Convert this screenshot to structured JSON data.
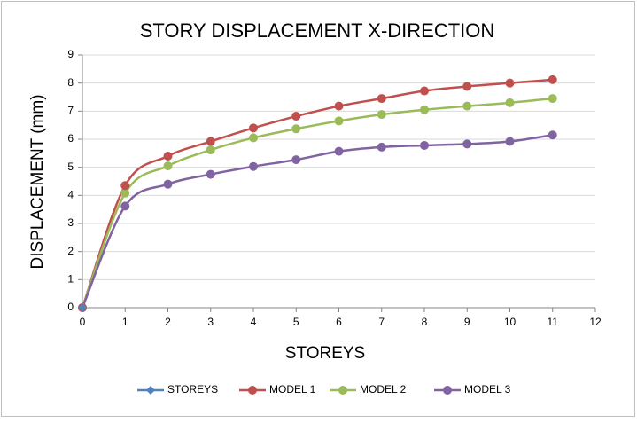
{
  "chart_data": {
    "type": "line",
    "title": "STORY DISPLACEMENT X-DIRECTION",
    "x_label": "STOREYS",
    "y_label": "DISPLACEMENT (mm)",
    "x": [
      0,
      1,
      2,
      3,
      4,
      5,
      6,
      7,
      8,
      9,
      10,
      11
    ],
    "series": [
      {
        "name": "STOREYS",
        "color": "#4f81bd",
        "marker": "diamond",
        "values": [
          0,
          null,
          null,
          null,
          null,
          null,
          null,
          null,
          null,
          null,
          null,
          null
        ]
      },
      {
        "name": "MODEL 1",
        "color": "#c0504d",
        "marker": "circle",
        "values": [
          0,
          4.35,
          5.4,
          5.92,
          6.4,
          6.82,
          7.18,
          7.45,
          7.72,
          7.88,
          8.0,
          8.12
        ]
      },
      {
        "name": "MODEL 2",
        "color": "#9bbb59",
        "marker": "circle",
        "values": [
          0,
          4.08,
          5.05,
          5.62,
          6.05,
          6.37,
          6.65,
          6.88,
          7.05,
          7.18,
          7.3,
          7.45
        ]
      },
      {
        "name": "MODEL 3",
        "color": "#8064a2",
        "marker": "circle",
        "values": [
          0,
          3.62,
          4.4,
          4.75,
          5.03,
          5.27,
          5.57,
          5.72,
          5.78,
          5.83,
          5.92,
          6.15
        ]
      }
    ],
    "xlim": [
      0,
      12
    ],
    "xticks": [
      0,
      1,
      2,
      3,
      4,
      5,
      6,
      7,
      8,
      9,
      10,
      11,
      12
    ],
    "ylim": [
      0,
      9
    ],
    "yticks": [
      0,
      1,
      2,
      3,
      4,
      5,
      6,
      7,
      8,
      9
    ],
    "grid": true,
    "smooth": true,
    "legend": "bottom"
  }
}
